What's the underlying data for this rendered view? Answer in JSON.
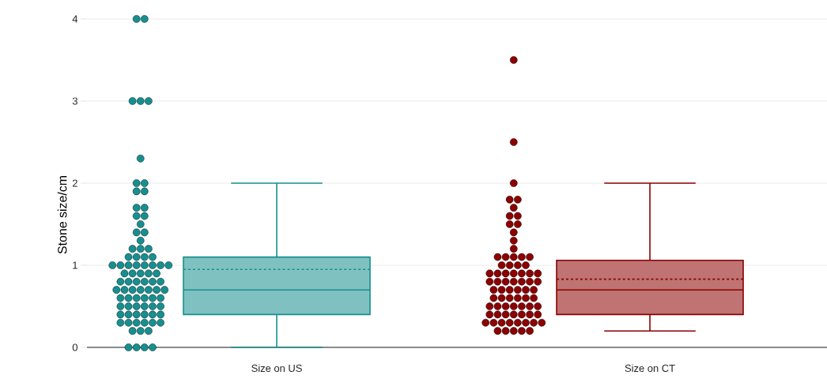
{
  "chart_data": {
    "type": "box",
    "ylabel": "Stone size/cm",
    "categories": [
      "Size on US",
      "Size on CT"
    ],
    "colors": [
      "#178F8F",
      "#8B0000"
    ],
    "boxes": [
      {
        "low": 0,
        "q1": 0.4,
        "median": 0.7,
        "q3": 1.1,
        "high": 2,
        "mean": 0.95
      },
      {
        "low": 0.2,
        "q1": 0.4,
        "median": 0.7,
        "q3": 1.06,
        "high": 2,
        "mean": 0.83
      }
    ],
    "series": [
      {
        "type": "scatter",
        "color": "#178F8F",
        "x": [
          "Size on US",
          "Size on US",
          "Size on US",
          "Size on US",
          "Size on US",
          "Size on US",
          "Size on US",
          "Size on US",
          "Size on US",
          "Size on US",
          "Size on US",
          "Size on US",
          "Size on US",
          "Size on US",
          "Size on US",
          "Size on US",
          "Size on US",
          "Size on US",
          "Size on US",
          "Size on US",
          "Size on US",
          "Size on US",
          "Size on US",
          "Size on US",
          "Size on US",
          "Size on US",
          "Size on US",
          "Size on US",
          "Size on US",
          "Size on US",
          "Size on US",
          "Size on US",
          "Size on US",
          "Size on US",
          "Size on US",
          "Size on US",
          "Size on US",
          "Size on US",
          "Size on US",
          "Size on US",
          "Size on US",
          "Size on US",
          "Size on US",
          "Size on US",
          "Size on US",
          "Size on US",
          "Size on US",
          "Size on US",
          "Size on US",
          "Size on US",
          "Size on US",
          "Size on US",
          "Size on US",
          "Size on US",
          "Size on US",
          "Size on US",
          "Size on US",
          "Size on US",
          "Size on US",
          "Size on US",
          "Size on US",
          "Size on US",
          "Size on US",
          "Size on US",
          "Size on US",
          "Size on US",
          "Size on US",
          "Size on US",
          "Size on US",
          "Size on US",
          "Size on US",
          "Size on US",
          "Size on US",
          "Size on US",
          "Size on US",
          "Size on US",
          "Size on US",
          "Size on US",
          "Size on US",
          "Size on US",
          "Size on US",
          "Size on US"
        ],
        "values": [
          4,
          4,
          3,
          3,
          3,
          2.3,
          2.0,
          2.0,
          1.9,
          1.9,
          1.7,
          1.7,
          1.6,
          1.6,
          1.5,
          1.4,
          1.4,
          1.3,
          1.2,
          1.2,
          1.2,
          1.1,
          1.1,
          1.1,
          1.1,
          1.0,
          1.0,
          1.0,
          1.0,
          1.0,
          1.0,
          1.0,
          1.0,
          0.9,
          0.9,
          0.9,
          0.9,
          0.9,
          0.8,
          0.8,
          0.8,
          0.8,
          0.8,
          0.8,
          0.7,
          0.7,
          0.7,
          0.7,
          0.7,
          0.7,
          0.7,
          0.6,
          0.6,
          0.6,
          0.6,
          0.6,
          0.6,
          0.5,
          0.5,
          0.5,
          0.5,
          0.5,
          0.5,
          0.4,
          0.4,
          0.4,
          0.4,
          0.4,
          0.4,
          0.3,
          0.3,
          0.3,
          0.3,
          0.3,
          0.3,
          0.2,
          0.2,
          0.2,
          0,
          0,
          0,
          0
        ]
      },
      {
        "type": "scatter",
        "color": "#8B0000",
        "x": [
          "Size on CT",
          "Size on CT",
          "Size on CT",
          "Size on CT",
          "Size on CT",
          "Size on CT",
          "Size on CT",
          "Size on CT",
          "Size on CT",
          "Size on CT",
          "Size on CT",
          "Size on CT",
          "Size on CT",
          "Size on CT",
          "Size on CT",
          "Size on CT",
          "Size on CT",
          "Size on CT",
          "Size on CT",
          "Size on CT",
          "Size on CT",
          "Size on CT",
          "Size on CT",
          "Size on CT",
          "Size on CT",
          "Size on CT",
          "Size on CT",
          "Size on CT",
          "Size on CT",
          "Size on CT",
          "Size on CT",
          "Size on CT",
          "Size on CT",
          "Size on CT",
          "Size on CT",
          "Size on CT",
          "Size on CT",
          "Size on CT",
          "Size on CT",
          "Size on CT",
          "Size on CT",
          "Size on CT",
          "Size on CT",
          "Size on CT",
          "Size on CT",
          "Size on CT",
          "Size on CT",
          "Size on CT",
          "Size on CT",
          "Size on CT",
          "Size on CT",
          "Size on CT",
          "Size on CT",
          "Size on CT",
          "Size on CT",
          "Size on CT",
          "Size on CT",
          "Size on CT",
          "Size on CT",
          "Size on CT",
          "Size on CT",
          "Size on CT",
          "Size on CT",
          "Size on CT",
          "Size on CT",
          "Size on CT",
          "Size on CT",
          "Size on CT",
          "Size on CT",
          "Size on CT",
          "Size on CT",
          "Size on CT",
          "Size on CT",
          "Size on CT",
          "Size on CT"
        ],
        "values": [
          3.5,
          2.5,
          2.0,
          1.8,
          1.8,
          1.7,
          1.6,
          1.6,
          1.5,
          1.5,
          1.4,
          1.3,
          1.2,
          1.1,
          1.1,
          1.1,
          1.1,
          1.1,
          1.0,
          1.0,
          1.0,
          1.0,
          0.9,
          0.9,
          0.9,
          0.9,
          0.9,
          0.9,
          0.9,
          0.8,
          0.8,
          0.8,
          0.8,
          0.8,
          0.8,
          0.8,
          0.7,
          0.7,
          0.7,
          0.7,
          0.7,
          0.7,
          0.6,
          0.6,
          0.6,
          0.6,
          0.6,
          0.6,
          0.5,
          0.5,
          0.5,
          0.5,
          0.5,
          0.5,
          0.5,
          0.4,
          0.4,
          0.4,
          0.4,
          0.4,
          0.4,
          0.4,
          0.3,
          0.3,
          0.3,
          0.3,
          0.3,
          0.3,
          0.3,
          0.3,
          0.2,
          0.2,
          0.2,
          0.2,
          0.2
        ]
      }
    ],
    "ylim": [
      0,
      4
    ],
    "yticks": [
      0,
      1,
      2,
      3,
      4
    ],
    "grid": "y",
    "marker": "circle"
  }
}
